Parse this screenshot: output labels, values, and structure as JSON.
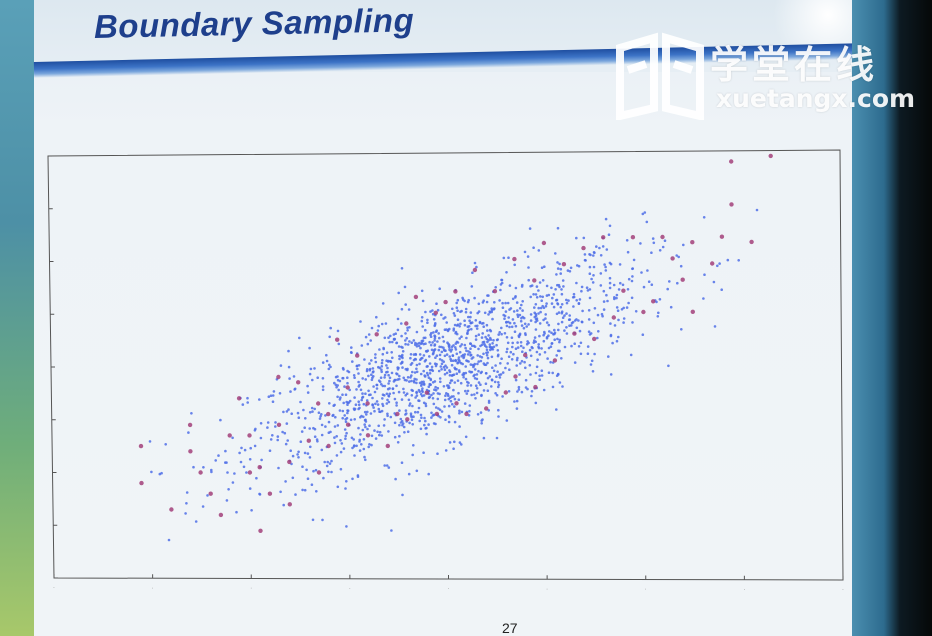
{
  "slide": {
    "title": "Boundary Sampling",
    "page_number": "27"
  },
  "watermark": {
    "chinese_text": "学堂在线",
    "url_text": "xuetangx.com",
    "icon": "book-logo-icon"
  },
  "colors": {
    "title": "#1e3f8c",
    "interior_points": "#4f6fe8",
    "boundary_points": "#a2407a",
    "axes": "#555555"
  },
  "chart_data": {
    "type": "scatter",
    "title": "",
    "xlabel": "",
    "ylabel": "",
    "xlim": [
      -4,
      4
    ],
    "ylim": [
      -4,
      4
    ],
    "grid": false,
    "legend": "none",
    "tick_labels_legible": false,
    "distribution": {
      "kind": "correlated Gaussian cloud",
      "n_interior_points": 1600,
      "mean": [
        0,
        0
      ],
      "std": [
        1.0,
        1.0
      ],
      "correlation": 0.75
    },
    "series": [
      {
        "role": "interior",
        "color": "#4f6fe8",
        "sample_points": [
          [
            0.2,
            0.1
          ],
          [
            -0.5,
            -0.3
          ],
          [
            0.8,
            0.7
          ],
          [
            -1.0,
            -0.6
          ],
          [
            1.2,
            1.0
          ],
          [
            0.0,
            0.3
          ],
          [
            -0.3,
            0.2
          ],
          [
            0.5,
            0.2
          ]
        ]
      },
      {
        "role": "boundary",
        "color": "#a2407a",
        "points": [
          [
            -3.1,
            -1.5
          ],
          [
            -3.1,
            -2.2
          ],
          [
            -2.8,
            -2.7
          ],
          [
            -2.6,
            -1.1
          ],
          [
            -2.6,
            -1.6
          ],
          [
            -2.5,
            -2.0
          ],
          [
            -2.4,
            -2.4
          ],
          [
            -2.3,
            -2.8
          ],
          [
            -2.2,
            -1.3
          ],
          [
            -2.1,
            -0.6
          ],
          [
            -2.0,
            -2.0
          ],
          [
            -2.0,
            -1.3
          ],
          [
            -1.9,
            -3.1
          ],
          [
            -1.9,
            -1.9
          ],
          [
            -1.8,
            -2.4
          ],
          [
            -1.7,
            -0.2
          ],
          [
            -1.7,
            -1.1
          ],
          [
            -1.6,
            -1.8
          ],
          [
            -1.6,
            -2.6
          ],
          [
            -1.5,
            -0.3
          ],
          [
            -1.4,
            -1.4
          ],
          [
            -1.3,
            -0.7
          ],
          [
            -1.3,
            -2.0
          ],
          [
            -1.2,
            -0.9
          ],
          [
            -1.2,
            -1.5
          ],
          [
            -1.1,
            0.5
          ],
          [
            -1.0,
            -1.1
          ],
          [
            -1.0,
            -0.4
          ],
          [
            -0.9,
            0.2
          ],
          [
            -0.8,
            -1.3
          ],
          [
            -0.8,
            -0.7
          ],
          [
            -0.7,
            0.6
          ],
          [
            -0.6,
            -1.5
          ],
          [
            -0.5,
            -0.9
          ],
          [
            -0.4,
            0.8
          ],
          [
            -0.4,
            -1.0
          ],
          [
            -0.3,
            1.3
          ],
          [
            -0.2,
            -0.5
          ],
          [
            -0.1,
            1.0
          ],
          [
            -0.1,
            -0.9
          ],
          [
            0.0,
            1.2
          ],
          [
            0.1,
            -0.7
          ],
          [
            0.1,
            1.4
          ],
          [
            0.2,
            -0.9
          ],
          [
            0.3,
            1.8
          ],
          [
            0.4,
            -0.8
          ],
          [
            0.5,
            1.4
          ],
          [
            0.6,
            -0.5
          ],
          [
            0.7,
            2.0
          ],
          [
            0.7,
            -0.2
          ],
          [
            0.8,
            0.2
          ],
          [
            0.9,
            1.6
          ],
          [
            0.9,
            -0.4
          ],
          [
            1.0,
            2.3
          ],
          [
            1.1,
            0.1
          ],
          [
            1.2,
            1.9
          ],
          [
            1.3,
            0.6
          ],
          [
            1.4,
            2.2
          ],
          [
            1.5,
            0.5
          ],
          [
            1.6,
            2.4
          ],
          [
            1.7,
            0.9
          ],
          [
            1.8,
            1.4
          ],
          [
            1.9,
            2.4
          ],
          [
            2.0,
            1.0
          ],
          [
            2.1,
            1.2
          ],
          [
            2.2,
            2.4
          ],
          [
            2.3,
            2.0
          ],
          [
            2.4,
            1.6
          ],
          [
            2.5,
            1.0
          ],
          [
            2.5,
            2.3
          ],
          [
            2.7,
            1.9
          ],
          [
            2.8,
            2.4
          ],
          [
            2.9,
            3.0
          ],
          [
            2.9,
            3.8
          ],
          [
            3.1,
            2.3
          ],
          [
            3.3,
            3.9
          ]
        ]
      }
    ]
  }
}
